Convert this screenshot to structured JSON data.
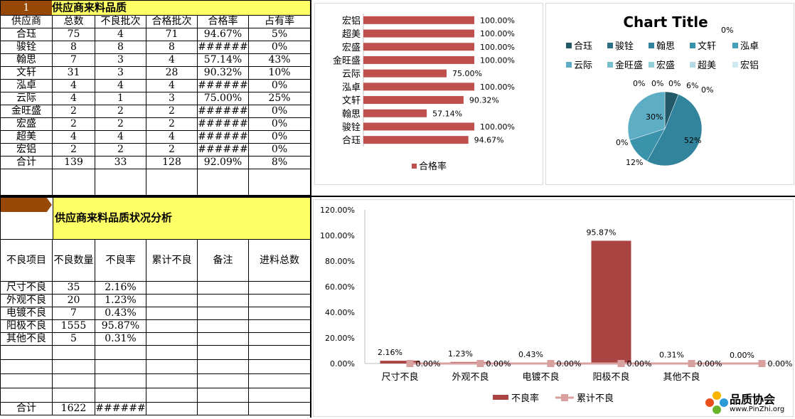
{
  "table1": {
    "index": "1",
    "title": "供应商来料品质",
    "headers": [
      "供应商",
      "总数",
      "不良批次",
      "合格批次",
      "合格率",
      "占有率"
    ],
    "rows": [
      [
        "合珏",
        "75",
        "4",
        "71",
        "94.67%",
        "5%"
      ],
      [
        "骏铨",
        "8",
        "8",
        "8",
        "######",
        "0%"
      ],
      [
        "翰思",
        "7",
        "3",
        "4",
        "57.14%",
        "43%"
      ],
      [
        "文轩",
        "31",
        "3",
        "28",
        "90.32%",
        "10%"
      ],
      [
        "泓卓",
        "4",
        "4",
        "4",
        "######",
        "0%"
      ],
      [
        "云际",
        "4",
        "1",
        "3",
        "75.00%",
        "25%"
      ],
      [
        "金旺盛",
        "2",
        "2",
        "2",
        "######",
        "0%"
      ],
      [
        "宏盛",
        "2",
        "2",
        "2",
        "######",
        "0%"
      ],
      [
        "超美",
        "4",
        "4",
        "4",
        "######",
        "0%"
      ],
      [
        "宏铝",
        "2",
        "2",
        "2",
        "######",
        "0%"
      ]
    ],
    "total": [
      "合计",
      "139",
      "33",
      "128",
      "92.09%",
      "8%"
    ]
  },
  "table2": {
    "title": "供应商来料品质状况分析",
    "headers": [
      "不良项目",
      "不良数量",
      "不良率",
      "累计不良",
      "备注",
      "进料总数"
    ],
    "rows": [
      [
        "尺寸不良",
        "35",
        "2.16%",
        "",
        "",
        ""
      ],
      [
        "外观不良",
        "20",
        "1.23%",
        "",
        "",
        ""
      ],
      [
        "电镀不良",
        "7",
        "0.43%",
        "",
        "",
        ""
      ],
      [
        "阳极不良",
        "1555",
        "95.87%",
        "",
        "",
        ""
      ],
      [
        "其他不良",
        "5",
        "0.31%",
        "",
        "",
        ""
      ]
    ],
    "total": [
      "合计",
      "1622",
      "######",
      "",
      "",
      ""
    ]
  },
  "chart_data": [
    {
      "type": "bar",
      "orientation": "horizontal",
      "categories": [
        "宏铝",
        "超美",
        "宏盛",
        "金旺盛",
        "云际",
        "泓卓",
        "文轩",
        "翰思",
        "骏铨",
        "合珏"
      ],
      "series": [
        {
          "name": "合格率",
          "values": [
            100.0,
            100.0,
            100.0,
            100.0,
            75.0,
            100.0,
            90.32,
            57.14,
            100.0,
            94.67
          ]
        }
      ],
      "value_labels": [
        "100.00%",
        "100.00%",
        "100.00%",
        "100.00%",
        "75.00%",
        "100.00%",
        "90.32%",
        "57.14%",
        "100.00%",
        "94.67%"
      ],
      "xlim": [
        0,
        100
      ],
      "legend": "bottom",
      "color": "#c0504d"
    },
    {
      "type": "pie",
      "title": "Chart Title",
      "legend": [
        "合珏",
        "骏铨",
        "翰思",
        "文轩",
        "泓卓",
        "云际",
        "金旺盛",
        "宏盛",
        "超美",
        "宏铝"
      ],
      "values": [
        6,
        0,
        52,
        12,
        0,
        30,
        0,
        0,
        0,
        0
      ],
      "labels": [
        "6%",
        "0%",
        "52%",
        "12%",
        "0%",
        "30%",
        "0%",
        "0%",
        "0%",
        "0%"
      ],
      "colors": [
        "#215968",
        "#2a6f82",
        "#31849b",
        "#3a93ab",
        "#4a9fb8",
        "#5dadc4",
        "#79bdd0",
        "#96cddb",
        "#b2dbe6",
        "#cfe9f0"
      ],
      "legend_position": "top"
    },
    {
      "type": "bar",
      "categories": [
        "尺寸不良",
        "外观不良",
        "电镀不良",
        "阳极不良",
        "其他不良",
        ""
      ],
      "series": [
        {
          "name": "不良率",
          "values": [
            2.16,
            1.23,
            0.43,
            95.87,
            0.31,
            0
          ],
          "labels": [
            "2.16%",
            "1.23%",
            "0.43%",
            "95.87%",
            "0.31%",
            "0.00%"
          ],
          "color": "#a94442"
        },
        {
          "name": "累计不良",
          "type": "line",
          "values": [
            0,
            0,
            0,
            0,
            0,
            0
          ],
          "labels": [
            "0.00%",
            "0.00%",
            "0.00%",
            "0.00%",
            "0.00%",
            "0.00%"
          ],
          "color": "#d9a0a0"
        }
      ],
      "yticks": [
        "0.00%",
        "20.00%",
        "40.00%",
        "60.00%",
        "80.00%",
        "100.00%",
        "120.00%"
      ],
      "ylim": [
        0,
        120
      ],
      "legend": "bottom"
    }
  ],
  "logo": {
    "name": "品质协会",
    "url": "www.PinZhi.org"
  }
}
